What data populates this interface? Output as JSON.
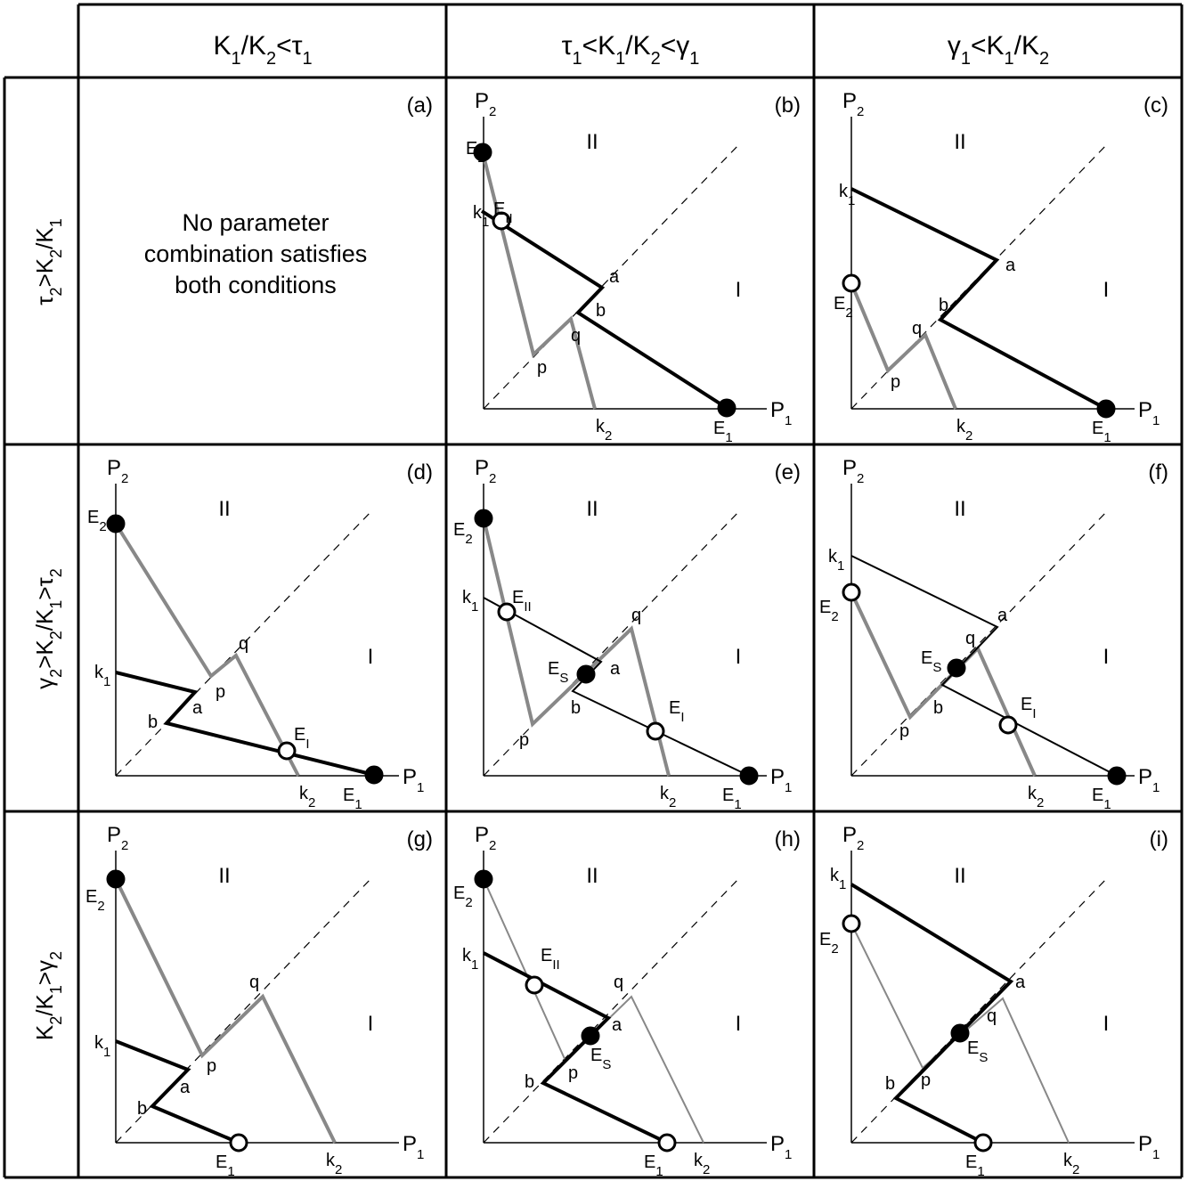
{
  "column_headers": [
    {
      "parts": [
        [
          "K",
          "1"
        ],
        [
          "/K",
          "2"
        ],
        [
          "<τ",
          "1"
        ]
      ]
    },
    {
      "parts": [
        [
          "τ",
          "1"
        ],
        [
          "<K",
          "1"
        ],
        [
          "/K",
          "2"
        ],
        [
          "<γ",
          "1"
        ]
      ]
    },
    {
      "parts": [
        [
          "γ",
          "1"
        ],
        [
          "<K",
          "1"
        ],
        [
          "/K",
          "2"
        ]
      ]
    }
  ],
  "row_headers": [
    {
      "parts": [
        [
          "τ",
          "2"
        ],
        [
          ">K",
          "2"
        ],
        [
          "/K",
          "1"
        ]
      ]
    },
    {
      "parts": [
        [
          "γ",
          "2"
        ],
        [
          ">K",
          "2"
        ],
        [
          "/K",
          "1"
        ],
        [
          ">τ",
          "2"
        ]
      ]
    },
    {
      "parts": [
        [
          "K",
          "2"
        ],
        [
          "/K",
          "1"
        ],
        [
          ">γ",
          "2"
        ]
      ]
    }
  ],
  "axis_labels": {
    "x": [
      "P",
      "1"
    ],
    "y": [
      "P",
      "2"
    ]
  },
  "region_labels": {
    "upper": "II",
    "lower": "I"
  },
  "panel_a_message": [
    "No parameter",
    "combination satisfies",
    "both conditions"
  ],
  "colors": {
    "black_isocline": "#000000",
    "gray_isocline": "#888888",
    "dashed_diagonal": "#000000"
  },
  "panels": [
    {
      "id": "a",
      "label": "(a)",
      "empty": true
    },
    {
      "id": "b",
      "label": "(b)",
      "empty": false,
      "curves": [
        {
          "color": "gray",
          "weight": "thick",
          "points": [
            "E2",
            "p",
            "q",
            "k2"
          ]
        },
        {
          "color": "black",
          "weight": "thick",
          "points": [
            "k1",
            "a",
            "b",
            "E1"
          ]
        }
      ],
      "equilibria": [
        {
          "name": [
            "E",
            "2"
          ],
          "filled": true
        },
        {
          "name": [
            "E",
            "II"
          ],
          "filled": false
        },
        {
          "name": [
            "E",
            "1"
          ],
          "filled": true
        }
      ],
      "point_labels": [
        [
          "k",
          "1"
        ],
        [
          "a",
          ""
        ],
        [
          "b",
          ""
        ],
        [
          "p",
          ""
        ],
        [
          "q",
          ""
        ],
        [
          "k",
          "2"
        ]
      ]
    },
    {
      "id": "c",
      "label": "(c)",
      "empty": false,
      "curves": [
        {
          "color": "gray",
          "weight": "thick",
          "points": [
            "E2",
            "p",
            "q",
            "k2"
          ]
        },
        {
          "color": "black",
          "weight": "thick",
          "points": [
            "k1",
            "a",
            "b",
            "E1"
          ]
        }
      ],
      "equilibria": [
        {
          "name": [
            "E",
            "2"
          ],
          "filled": false
        },
        {
          "name": [
            "E",
            "1"
          ],
          "filled": true
        }
      ],
      "point_labels": [
        [
          "k",
          "1"
        ],
        [
          "a",
          ""
        ],
        [
          "b",
          ""
        ],
        [
          "p",
          ""
        ],
        [
          "q",
          ""
        ],
        [
          "k",
          "2"
        ]
      ]
    },
    {
      "id": "d",
      "label": "(d)",
      "empty": false,
      "curves": [
        {
          "color": "gray",
          "weight": "thick",
          "points": [
            "E2",
            "p",
            "q",
            "k2"
          ]
        },
        {
          "color": "black",
          "weight": "thick",
          "points": [
            "k1",
            "a",
            "b",
            "E1"
          ]
        }
      ],
      "equilibria": [
        {
          "name": [
            "E",
            "2"
          ],
          "filled": true
        },
        {
          "name": [
            "E",
            "I"
          ],
          "filled": false
        },
        {
          "name": [
            "E",
            "1"
          ],
          "filled": true
        }
      ],
      "point_labels": [
        [
          "k",
          "1"
        ],
        [
          "a",
          ""
        ],
        [
          "b",
          ""
        ],
        [
          "p",
          ""
        ],
        [
          "q",
          ""
        ],
        [
          "k",
          "2"
        ]
      ]
    },
    {
      "id": "e",
      "label": "(e)",
      "empty": false,
      "curves": [
        {
          "color": "gray",
          "weight": "thick",
          "points": [
            "E2",
            "p",
            "q",
            "k2"
          ]
        },
        {
          "color": "black",
          "weight": "thin",
          "points": [
            "k1",
            "a",
            "b",
            "E1"
          ]
        }
      ],
      "equilibria": [
        {
          "name": [
            "E",
            "2"
          ],
          "filled": true
        },
        {
          "name": [
            "E",
            "II"
          ],
          "filled": false
        },
        {
          "name": [
            "E",
            "S"
          ],
          "filled": true
        },
        {
          "name": [
            "E",
            "I"
          ],
          "filled": false
        },
        {
          "name": [
            "E",
            "1"
          ],
          "filled": true
        }
      ],
      "point_labels": [
        [
          "k",
          "1"
        ],
        [
          "a",
          ""
        ],
        [
          "b",
          ""
        ],
        [
          "p",
          ""
        ],
        [
          "q",
          ""
        ],
        [
          "k",
          "2"
        ]
      ]
    },
    {
      "id": "f",
      "label": "(f)",
      "empty": false,
      "curves": [
        {
          "color": "gray",
          "weight": "thick",
          "points": [
            "E2",
            "p",
            "q",
            "k2"
          ]
        },
        {
          "color": "black",
          "weight": "thin",
          "points": [
            "k1",
            "a",
            "b",
            "E1"
          ]
        }
      ],
      "equilibria": [
        {
          "name": [
            "E",
            "2"
          ],
          "filled": false
        },
        {
          "name": [
            "E",
            "S"
          ],
          "filled": true
        },
        {
          "name": [
            "E",
            "I"
          ],
          "filled": false
        },
        {
          "name": [
            "E",
            "1"
          ],
          "filled": true
        }
      ],
      "point_labels": [
        [
          "k",
          "1"
        ],
        [
          "a",
          ""
        ],
        [
          "b",
          ""
        ],
        [
          "p",
          ""
        ],
        [
          "q",
          ""
        ],
        [
          "k",
          "2"
        ]
      ]
    },
    {
      "id": "g",
      "label": "(g)",
      "empty": false,
      "curves": [
        {
          "color": "gray",
          "weight": "thick",
          "points": [
            "E2",
            "p",
            "q",
            "k2"
          ]
        },
        {
          "color": "black",
          "weight": "thick",
          "points": [
            "k1",
            "a",
            "b",
            "E1"
          ]
        }
      ],
      "equilibria": [
        {
          "name": [
            "E",
            "2"
          ],
          "filled": true
        },
        {
          "name": [
            "E",
            "1"
          ],
          "filled": false
        }
      ],
      "point_labels": [
        [
          "k",
          "1"
        ],
        [
          "a",
          ""
        ],
        [
          "b",
          ""
        ],
        [
          "p",
          ""
        ],
        [
          "q",
          ""
        ],
        [
          "k",
          "2"
        ]
      ]
    },
    {
      "id": "h",
      "label": "(h)",
      "empty": false,
      "curves": [
        {
          "color": "gray",
          "weight": "thin",
          "points": [
            "E2",
            "p",
            "q",
            "k2"
          ]
        },
        {
          "color": "black",
          "weight": "thick",
          "points": [
            "k1",
            "a",
            "b",
            "E1"
          ]
        }
      ],
      "equilibria": [
        {
          "name": [
            "E",
            "2"
          ],
          "filled": true
        },
        {
          "name": [
            "E",
            "II"
          ],
          "filled": false
        },
        {
          "name": [
            "E",
            "S"
          ],
          "filled": true
        },
        {
          "name": [
            "E",
            "1"
          ],
          "filled": false
        }
      ],
      "point_labels": [
        [
          "k",
          "1"
        ],
        [
          "a",
          ""
        ],
        [
          "b",
          ""
        ],
        [
          "p",
          ""
        ],
        [
          "q",
          ""
        ],
        [
          "k",
          "2"
        ]
      ]
    },
    {
      "id": "i",
      "label": "(i)",
      "empty": false,
      "curves": [
        {
          "color": "gray",
          "weight": "thin",
          "points": [
            "E2",
            "p",
            "q",
            "k2"
          ]
        },
        {
          "color": "black",
          "weight": "thick",
          "points": [
            "k1",
            "a",
            "b",
            "E1"
          ]
        }
      ],
      "equilibria": [
        {
          "name": [
            "E",
            "2"
          ],
          "filled": false
        },
        {
          "name": [
            "E",
            "S"
          ],
          "filled": true
        },
        {
          "name": [
            "E",
            "1"
          ],
          "filled": false
        }
      ],
      "point_labels": [
        [
          "k",
          "1"
        ],
        [
          "a",
          ""
        ],
        [
          "b",
          ""
        ],
        [
          "p",
          ""
        ],
        [
          "q",
          ""
        ],
        [
          "k",
          "2"
        ]
      ]
    }
  ]
}
